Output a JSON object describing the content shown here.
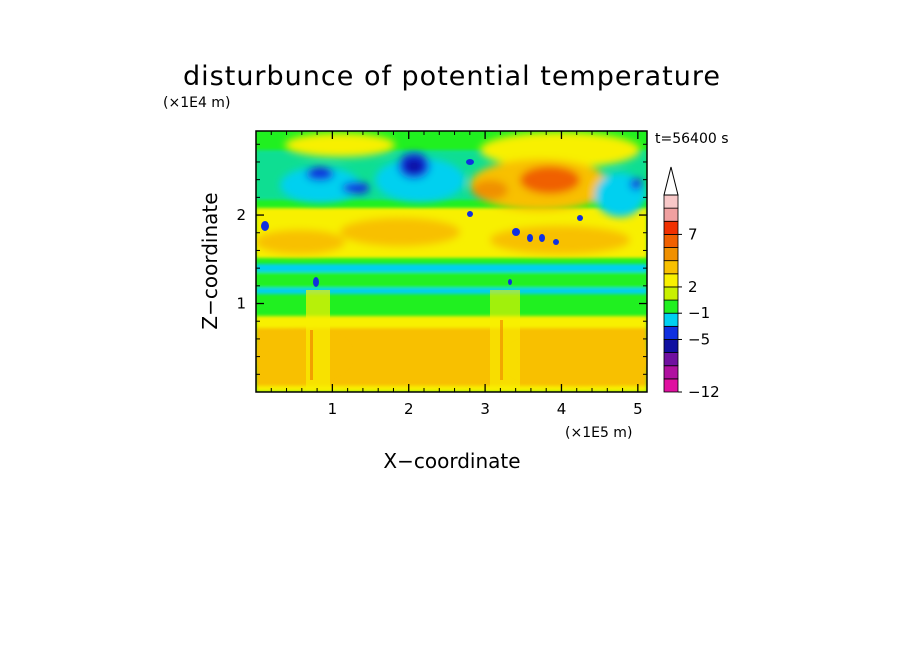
{
  "chart_data": {
    "type": "heatmap",
    "title": "disturbunce of potential temperature",
    "xlabel": "X−coordinate",
    "ylabel": "Z−coordinate",
    "x_unit": "(×1E5 m)",
    "y_unit": "(×1E4 m)",
    "time_label": "t=56400 s",
    "xlim": [
      0,
      5.12
    ],
    "ylim": [
      0,
      2.95
    ],
    "x_ticks": [
      {
        "value": 1,
        "label": "1"
      },
      {
        "value": 2,
        "label": "2"
      },
      {
        "value": 3,
        "label": "3"
      },
      {
        "value": 4,
        "label": "4"
      },
      {
        "value": 5,
        "label": "5"
      }
    ],
    "y_ticks": [
      {
        "value": 1,
        "label": "1"
      },
      {
        "value": 2,
        "label": "2"
      }
    ],
    "colorbar": {
      "levels": [
        {
          "color": "#e010a0"
        },
        {
          "color": "#b010a0"
        },
        {
          "color": "#7010a0"
        },
        {
          "color": "#1010a0"
        },
        {
          "color": "#1030e0"
        },
        {
          "color": "#00d0f0"
        },
        {
          "color": "#20f020"
        },
        {
          "color": "#c8f000"
        },
        {
          "color": "#f8f000"
        },
        {
          "color": "#f8c000"
        },
        {
          "color": "#f09000"
        },
        {
          "color": "#f06000"
        },
        {
          "color": "#f03000"
        },
        {
          "color": "#f0a0a0"
        },
        {
          "color": "#f8c8c8"
        }
      ],
      "tick_labels": [
        {
          "label": "−12",
          "level_index": 0
        },
        {
          "label": "−5",
          "level_index": 4
        },
        {
          "label": "−1",
          "level_index": 6
        },
        {
          "label": "2",
          "level_index": 8
        },
        {
          "label": "7",
          "level_index": 12
        }
      ]
    }
  }
}
